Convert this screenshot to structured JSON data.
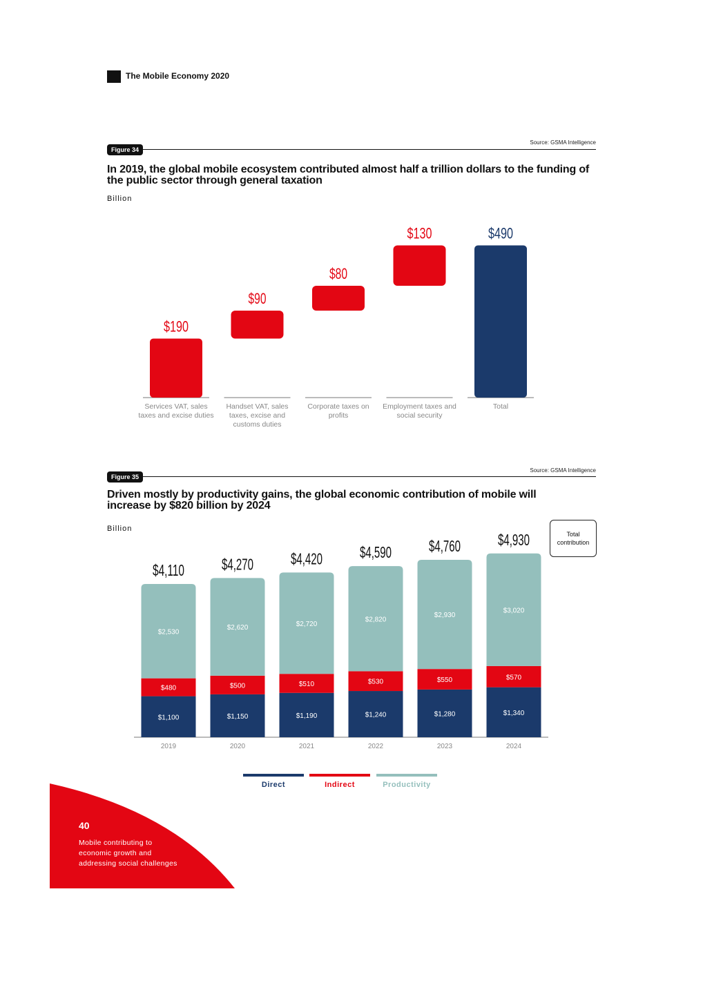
{
  "header": {
    "title": "The Mobile Economy 2020"
  },
  "footer": {
    "page_number": "40",
    "section_line1": "Mobile contributing to",
    "section_line2": "economic growth and",
    "section_line3": "addressing social challenges"
  },
  "colors": {
    "red": "#e30613",
    "navy": "#1b3a6b",
    "teal": "#94bfbc",
    "black": "#111111"
  },
  "chart_data": [
    {
      "type": "bar",
      "subtype": "waterfall",
      "figure_label": "Figure 34",
      "source": "Source: GSMA Intelligence",
      "title": "In 2019, the global mobile ecosystem contributed almost half a trillion dollars to the funding of the public sector through general taxation",
      "ylabel": "Billion",
      "categories": [
        "Services VAT, sales taxes and excise duties",
        "Handset VAT, sales taxes, excise and customs duties",
        "Corporate taxes on profits",
        "Employment taxes and social security",
        "Total"
      ],
      "values": [
        190,
        90,
        80,
        130,
        490
      ],
      "data_labels": [
        "$190",
        "$90",
        "$80",
        "$130",
        "$490"
      ],
      "colors": [
        "#e30613",
        "#e30613",
        "#e30613",
        "#e30613",
        "#1b3a6b"
      ],
      "ylim": [
        0,
        490
      ],
      "grid": false
    },
    {
      "type": "bar",
      "subtype": "stacked",
      "figure_label": "Figure 35",
      "source": "Source: GSMA Intelligence",
      "title": "Driven mostly by productivity gains, the global economic contribution of mobile will increase by $820 billion by 2024",
      "ylabel": "Billion",
      "categories": [
        "2019",
        "2020",
        "2021",
        "2022",
        "2023",
        "2024"
      ],
      "series": [
        {
          "name": "Direct",
          "color": "#1b3a6b",
          "values": [
            1100,
            1150,
            1190,
            1240,
            1280,
            1340
          ],
          "labels": [
            "$1,100",
            "$1,150",
            "$1,190",
            "$1,240",
            "$1,280",
            "$1,340"
          ]
        },
        {
          "name": "Indirect",
          "color": "#e30613",
          "values": [
            480,
            500,
            510,
            530,
            550,
            570
          ],
          "labels": [
            "$480",
            "$500",
            "$510",
            "$530",
            "$550",
            "$570"
          ]
        },
        {
          "name": "Productivity",
          "color": "#94bfbc",
          "values": [
            2530,
            2620,
            2720,
            2820,
            2930,
            3020
          ],
          "labels": [
            "$2,530",
            "$2,620",
            "$2,720",
            "$2,820",
            "$2,930",
            "$3,020"
          ]
        }
      ],
      "totals": [
        4110,
        4270,
        4420,
        4590,
        4760,
        4930
      ],
      "total_labels": [
        "$4,110",
        "$4,270",
        "$4,420",
        "$4,590",
        "$4,760",
        "$4,930"
      ],
      "callout": "Total contribution",
      "legend_placement": "bottom",
      "grid": false
    }
  ]
}
